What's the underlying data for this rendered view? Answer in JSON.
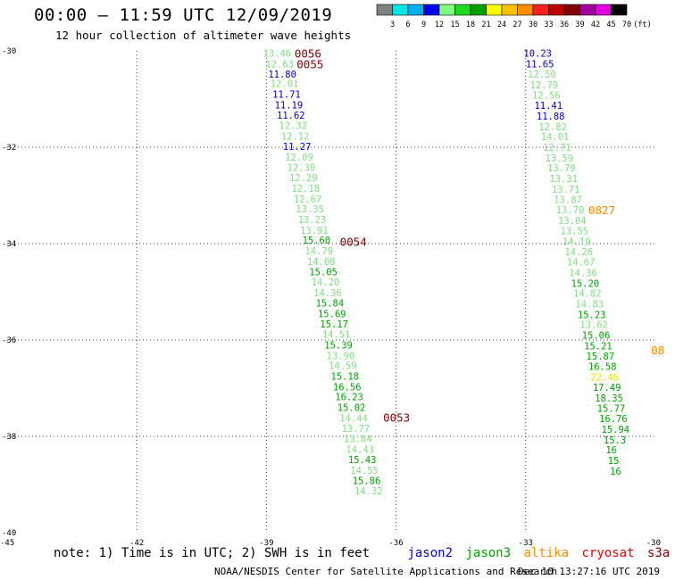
{
  "header": {
    "title": "00:00 – 11:59 UTC 12/09/2019",
    "subtitle": "12 hour collection of altimeter wave heights"
  },
  "color_scale": {
    "labels": [
      "3",
      "6",
      "9",
      "12",
      "15",
      "18",
      "21",
      "24",
      "27",
      "30",
      "33",
      "36",
      "39",
      "42",
      "45",
      "70",
      "(ft)"
    ],
    "colors": [
      "#808080",
      "#00e5e5",
      "#00b0f0",
      "#0000ee",
      "#80ff80",
      "#1ed91e",
      "#00a000",
      "#ffff00",
      "#ffc000",
      "#ff8c00",
      "#ff2020",
      "#c00000",
      "#800000",
      "#a000a0",
      "#e000e0",
      "#000000"
    ]
  },
  "legend": {
    "note": "note: 1) Time is in UTC; 2) SWH is in feet",
    "missions": [
      {
        "name": "jason2",
        "color": "#0000cc"
      },
      {
        "name": "jason3",
        "color": "#00a000"
      },
      {
        "name": "altika",
        "color": "#ff8c00"
      },
      {
        "name": "cryosat",
        "color": "#e00000"
      },
      {
        "name": "s3a",
        "color": "#800000"
      }
    ]
  },
  "footer": {
    "credit": "NOAA/NESDIS Center for Satellite Applications and Research",
    "timestamp": "Dec 10 13:27:16 UTC 2019"
  },
  "chart_data": {
    "type": "scatter",
    "title": "00:00 – 11:59 UTC 12/09/2019",
    "subtitle": "12 hour collection of altimeter wave heights",
    "xlim": [
      -45,
      -30
    ],
    "ylim": [
      -40,
      -30
    ],
    "x_ticks": [
      -45,
      -42,
      -39,
      -36,
      -33,
      -30
    ],
    "x_tick_labels": [
      "-45",
      "-42",
      "-39",
      "-36",
      "-33",
      "-30"
    ],
    "y_ticks": [
      -30,
      -32,
      -34,
      -36,
      -38,
      -40
    ],
    "y_tick_labels": [
      "-30",
      "-32",
      "-34",
      "-36",
      "-38",
      "-40"
    ],
    "grid": true,
    "series": [
      {
        "name": "s3a",
        "points": [
          {
            "x": -39.08,
            "y": -30.05,
            "v": "13.46",
            "c": "#80e080"
          },
          {
            "x": -39.02,
            "y": -30.27,
            "v": "12.63",
            "c": "#80e080"
          },
          {
            "x": -38.96,
            "y": -30.48,
            "v": "11.80",
            "c": "#0000cc"
          },
          {
            "x": -38.91,
            "y": -30.68,
            "v": "12.01",
            "c": "#80e080"
          },
          {
            "x": -38.86,
            "y": -30.9,
            "v": "11.71",
            "c": "#0000cc"
          },
          {
            "x": -38.81,
            "y": -31.12,
            "v": "11.19",
            "c": "#0000cc"
          },
          {
            "x": -38.76,
            "y": -31.33,
            "v": "11.62",
            "c": "#0000cc"
          },
          {
            "x": -38.71,
            "y": -31.55,
            "v": "12.32",
            "c": "#80e080"
          },
          {
            "x": -38.66,
            "y": -31.77,
            "v": "12.12",
            "c": "#80e080"
          },
          {
            "x": -38.62,
            "y": -31.98,
            "v": "11.27",
            "c": "#0000cc"
          },
          {
            "x": -38.57,
            "y": -32.2,
            "v": "12.09",
            "c": "#80e080"
          },
          {
            "x": -38.52,
            "y": -32.42,
            "v": "12.30",
            "c": "#80e080"
          },
          {
            "x": -38.47,
            "y": -32.63,
            "v": "12.29",
            "c": "#80e080"
          },
          {
            "x": -38.42,
            "y": -32.85,
            "v": "12.18",
            "c": "#80e080"
          },
          {
            "x": -38.37,
            "y": -33.07,
            "v": "12.67",
            "c": "#80e080"
          },
          {
            "x": -38.32,
            "y": -33.28,
            "v": "13.35",
            "c": "#80e080"
          },
          {
            "x": -38.27,
            "y": -33.5,
            "v": "13.23",
            "c": "#80e080"
          },
          {
            "x": -38.22,
            "y": -33.72,
            "v": "13.91",
            "c": "#80e080"
          },
          {
            "x": -38.17,
            "y": -33.93,
            "v": "15.60",
            "c": "#00a000"
          },
          {
            "x": -38.11,
            "y": -34.15,
            "v": "14.79",
            "c": "#80e080"
          },
          {
            "x": -38.06,
            "y": -34.37,
            "v": "14.08",
            "c": "#80e080"
          },
          {
            "x": -38.01,
            "y": -34.58,
            "v": "15.05",
            "c": "#00a000"
          },
          {
            "x": -37.96,
            "y": -34.8,
            "v": "14.20",
            "c": "#80e080"
          },
          {
            "x": -37.91,
            "y": -35.02,
            "v": "14.36",
            "c": "#80e080"
          },
          {
            "x": -37.86,
            "y": -35.23,
            "v": "15.84",
            "c": "#00a000"
          },
          {
            "x": -37.81,
            "y": -35.45,
            "v": "15.69",
            "c": "#00a000"
          },
          {
            "x": -37.76,
            "y": -35.67,
            "v": "15.17",
            "c": "#00a000"
          },
          {
            "x": -37.71,
            "y": -35.88,
            "v": "14.51",
            "c": "#80e080"
          },
          {
            "x": -37.66,
            "y": -36.1,
            "v": "15.39",
            "c": "#00a000"
          },
          {
            "x": -37.61,
            "y": -36.32,
            "v": "13.90",
            "c": "#80e080"
          },
          {
            "x": -37.56,
            "y": -36.53,
            "v": "14.59",
            "c": "#80e080"
          },
          {
            "x": -37.51,
            "y": -36.75,
            "v": "15.18",
            "c": "#00a000"
          },
          {
            "x": -37.46,
            "y": -36.97,
            "v": "16.56",
            "c": "#00a000"
          },
          {
            "x": -37.41,
            "y": -37.18,
            "v": "16.23",
            "c": "#00a000"
          },
          {
            "x": -37.36,
            "y": -37.4,
            "v": "15.02",
            "c": "#00a000"
          },
          {
            "x": -37.31,
            "y": -37.62,
            "v": "14.44",
            "c": "#80e080"
          },
          {
            "x": -37.26,
            "y": -37.83,
            "v": "13.77",
            "c": "#80e080"
          },
          {
            "x": -37.21,
            "y": -38.05,
            "v": "13.84",
            "c": "#80e080"
          },
          {
            "x": -37.16,
            "y": -38.27,
            "v": "14.43",
            "c": "#80e080"
          },
          {
            "x": -37.11,
            "y": -38.48,
            "v": "15.43",
            "c": "#00a000"
          },
          {
            "x": -37.06,
            "y": -38.7,
            "v": "14.55",
            "c": "#80e080"
          },
          {
            "x": -37.01,
            "y": -38.92,
            "v": "15.86",
            "c": "#00a000"
          },
          {
            "x": -36.96,
            "y": -39.13,
            "v": "14.32",
            "c": "#80e080"
          }
        ]
      },
      {
        "name": "altika",
        "points": [
          {
            "x": -33.05,
            "y": -30.05,
            "v": "10.23",
            "c": "#0000cc"
          },
          {
            "x": -33.0,
            "y": -30.27,
            "v": "11.65",
            "c": "#0000cc"
          },
          {
            "x": -32.95,
            "y": -30.48,
            "v": "12.50",
            "c": "#80e080"
          },
          {
            "x": -32.9,
            "y": -30.7,
            "v": "12.79",
            "c": "#80e080"
          },
          {
            "x": -32.85,
            "y": -30.92,
            "v": "12.56",
            "c": "#80e080"
          },
          {
            "x": -32.8,
            "y": -31.13,
            "v": "11.41",
            "c": "#0000cc"
          },
          {
            "x": -32.75,
            "y": -31.35,
            "v": "11.88",
            "c": "#0000cc"
          },
          {
            "x": -32.7,
            "y": -31.57,
            "v": "12.82",
            "c": "#80e080"
          },
          {
            "x": -32.65,
            "y": -31.78,
            "v": "14.01",
            "c": "#80e080"
          },
          {
            "x": -32.6,
            "y": -32.0,
            "v": "12.71",
            "c": "#80e080"
          },
          {
            "x": -32.55,
            "y": -32.22,
            "v": "13.59",
            "c": "#80e080"
          },
          {
            "x": -32.5,
            "y": -32.43,
            "v": "13.79",
            "c": "#80e080"
          },
          {
            "x": -32.45,
            "y": -32.65,
            "v": "13.31",
            "c": "#80e080"
          },
          {
            "x": -32.4,
            "y": -32.87,
            "v": "13.71",
            "c": "#80e080"
          },
          {
            "x": -32.35,
            "y": -33.08,
            "v": "13.87",
            "c": "#80e080"
          },
          {
            "x": -32.3,
            "y": -33.3,
            "v": "13.70",
            "c": "#80e080"
          },
          {
            "x": -32.25,
            "y": -33.52,
            "v": "13.04",
            "c": "#80e080"
          },
          {
            "x": -32.2,
            "y": -33.73,
            "v": "13.55",
            "c": "#80e080"
          },
          {
            "x": -32.15,
            "y": -33.95,
            "v": "14.19",
            "c": "#80e080"
          },
          {
            "x": -32.1,
            "y": -34.17,
            "v": "14.26",
            "c": "#80e080"
          },
          {
            "x": -32.05,
            "y": -34.38,
            "v": "14.67",
            "c": "#80e080"
          },
          {
            "x": -32.0,
            "y": -34.6,
            "v": "14.36",
            "c": "#80e080"
          },
          {
            "x": -31.95,
            "y": -34.82,
            "v": "15.20",
            "c": "#00a000"
          },
          {
            "x": -31.9,
            "y": -35.03,
            "v": "14.82",
            "c": "#80e080"
          },
          {
            "x": -31.85,
            "y": -35.25,
            "v": "14.83",
            "c": "#80e080"
          },
          {
            "x": -31.8,
            "y": -35.47,
            "v": "15.23",
            "c": "#00a000"
          },
          {
            "x": -31.75,
            "y": -35.68,
            "v": "13.62",
            "c": "#80e080"
          },
          {
            "x": -31.7,
            "y": -35.9,
            "v": "15.06",
            "c": "#00a000"
          },
          {
            "x": -31.65,
            "y": -36.12,
            "v": "15.21",
            "c": "#00a000"
          },
          {
            "x": -31.6,
            "y": -36.33,
            "v": "15.87",
            "c": "#00a000"
          },
          {
            "x": -31.55,
            "y": -36.55,
            "v": "16.58",
            "c": "#00a000"
          },
          {
            "x": -31.5,
            "y": -36.77,
            "v": "22.46",
            "c": "#e6e600"
          },
          {
            "x": -31.45,
            "y": -36.98,
            "v": "17.49",
            "c": "#00a000"
          },
          {
            "x": -31.4,
            "y": -37.2,
            "v": "18.35",
            "c": "#00a000"
          },
          {
            "x": -31.35,
            "y": -37.42,
            "v": "15.77",
            "c": "#00a000"
          },
          {
            "x": -31.3,
            "y": -37.63,
            "v": "16.76",
            "c": "#00a000"
          },
          {
            "x": -31.25,
            "y": -37.85,
            "v": "15.94",
            "c": "#00a000"
          },
          {
            "x": -31.2,
            "y": -38.07,
            "v": "15.3",
            "c": "#00a000"
          },
          {
            "x": -31.15,
            "y": -38.28,
            "v": "16",
            "c": "#00a000"
          },
          {
            "x": -31.1,
            "y": -38.5,
            "v": "15",
            "c": "#00a000"
          },
          {
            "x": -31.05,
            "y": -38.72,
            "v": "16",
            "c": "#00a000"
          }
        ]
      }
    ],
    "time_labels": [
      {
        "text": "0056",
        "x": -38.35,
        "y": -30.05,
        "c": "#800000"
      },
      {
        "text": "0055",
        "x": -38.3,
        "y": -30.27,
        "c": "#800000"
      },
      {
        "text": "0054",
        "x": -37.3,
        "y": -33.95,
        "c": "#800000"
      },
      {
        "text": "0053",
        "x": -36.3,
        "y": -37.6,
        "c": "#800000"
      },
      {
        "text": "0827",
        "x": -31.55,
        "y": -33.3,
        "c": "#ff8c00"
      },
      {
        "text": "08",
        "x": -30.1,
        "y": -36.2,
        "c": "#ff8c00"
      }
    ]
  }
}
